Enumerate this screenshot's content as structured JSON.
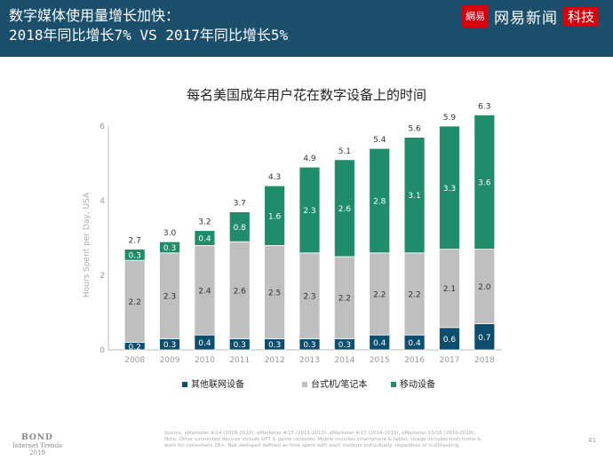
{
  "header": {
    "line1": "数字媒体使用量增长加快：",
    "line2": "2018年同比增长7% VS 2017年同比增长5%",
    "logo_seal": "網易",
    "logo_name": "网易新闻",
    "logo_tag": "科技",
    "brand_color": "#d7000f",
    "band_color": "#1b4f6b"
  },
  "chart_data": {
    "type": "bar",
    "stacked": true,
    "title": "每名美国成年用户花在数字设备上的时间",
    "ylabel": "Hours Spent per Day, USA",
    "xlabel": "",
    "ylim": [
      0,
      6
    ],
    "yticks": [
      "0",
      "2",
      "4",
      "6"
    ],
    "categories": [
      "2008",
      "2009",
      "2010",
      "2011",
      "2012",
      "2013",
      "2014",
      "2015",
      "2016",
      "2017",
      "2018"
    ],
    "series": [
      {
        "name": "其他联网设备",
        "color": "#0d4d6e",
        "values": [
          0.2,
          0.3,
          0.4,
          0.3,
          0.3,
          0.3,
          0.3,
          0.4,
          0.4,
          0.6,
          0.7
        ],
        "labels": [
          "0.2",
          "0.3",
          "0.4",
          "0.3",
          "0.3",
          "0.3",
          "0.3",
          "0.4",
          "0.4",
          "0.6",
          "0.7"
        ]
      },
      {
        "name": "台式机/笔记本",
        "color": "#bfbfbf",
        "values": [
          2.2,
          2.3,
          2.4,
          2.6,
          2.5,
          2.3,
          2.2,
          2.2,
          2.2,
          2.1,
          2.0
        ],
        "labels": [
          "2.2",
          "2.3",
          "2.4",
          "2.6",
          "2.5",
          "2.3",
          "2.2",
          "2.2",
          "2.2",
          "2.1",
          "2.0"
        ]
      },
      {
        "name": "移动设备",
        "color": "#1f8c6a",
        "values": [
          0.3,
          0.3,
          0.4,
          0.8,
          1.6,
          2.3,
          2.6,
          2.8,
          3.1,
          3.3,
          3.6
        ],
        "labels": [
          "0.3",
          "0.3",
          "0.4",
          "0.8",
          "1.6",
          "2.3",
          "2.6",
          "2.8",
          "3.1",
          "3.3",
          "3.6"
        ]
      }
    ],
    "totals": [
      "2.7",
      "3.0",
      "3.2",
      "3.7",
      "4.3",
      "4.9",
      "5.1",
      "5.4",
      "5.6",
      "5.9",
      "6.3"
    ],
    "legend_position": "bottom"
  },
  "footer": {
    "source_line1": "Source: eMarketer 9/14 (2008-2010), eMarketer 4/15 (2011-2013), eMarketer 4/17 (2014-2015), eMarketer 10/18 (2016-2018).",
    "source_line2": "Note: Other connected devices include OTT & game consoles. Mobile includes smartphone & tablet. Usage includes both home &",
    "source_line3": "work for consumers 18+. Non-deduped defined as time spent with each medium individually, regardless of multitasking.",
    "page_number": "41",
    "bond_name": "BOND",
    "bond_sub1": "Internet Trends",
    "bond_sub2": "2019"
  }
}
